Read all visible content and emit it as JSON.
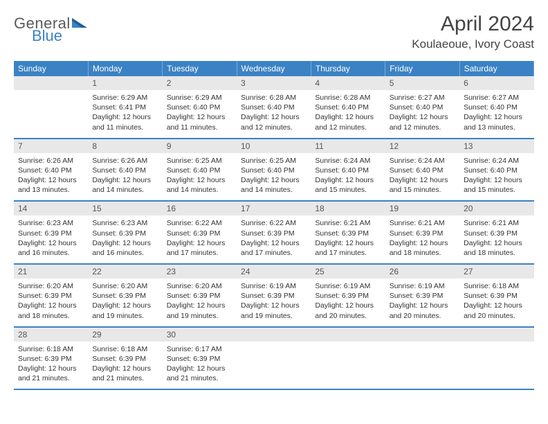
{
  "logo": {
    "part1": "General",
    "part2": "Blue"
  },
  "title": "April 2024",
  "location": "Koulaeoue, Ivory Coast",
  "colors": {
    "header_bg": "#3b82c4",
    "header_text": "#ffffff",
    "daynum_bg": "#e8e8e8",
    "text": "#333333",
    "rule": "#3b82c4"
  },
  "fonts": {
    "title_size_pt": 22,
    "location_size_pt": 13,
    "header_size_pt": 9,
    "body_size_pt": 8
  },
  "weekdays": [
    "Sunday",
    "Monday",
    "Tuesday",
    "Wednesday",
    "Thursday",
    "Friday",
    "Saturday"
  ],
  "weeks": [
    [
      null,
      {
        "n": "1",
        "sr": "Sunrise: 6:29 AM",
        "ss": "Sunset: 6:41 PM",
        "dl": "Daylight: 12 hours and 11 minutes."
      },
      {
        "n": "2",
        "sr": "Sunrise: 6:29 AM",
        "ss": "Sunset: 6:40 PM",
        "dl": "Daylight: 12 hours and 11 minutes."
      },
      {
        "n": "3",
        "sr": "Sunrise: 6:28 AM",
        "ss": "Sunset: 6:40 PM",
        "dl": "Daylight: 12 hours and 12 minutes."
      },
      {
        "n": "4",
        "sr": "Sunrise: 6:28 AM",
        "ss": "Sunset: 6:40 PM",
        "dl": "Daylight: 12 hours and 12 minutes."
      },
      {
        "n": "5",
        "sr": "Sunrise: 6:27 AM",
        "ss": "Sunset: 6:40 PM",
        "dl": "Daylight: 12 hours and 12 minutes."
      },
      {
        "n": "6",
        "sr": "Sunrise: 6:27 AM",
        "ss": "Sunset: 6:40 PM",
        "dl": "Daylight: 12 hours and 13 minutes."
      }
    ],
    [
      {
        "n": "7",
        "sr": "Sunrise: 6:26 AM",
        "ss": "Sunset: 6:40 PM",
        "dl": "Daylight: 12 hours and 13 minutes."
      },
      {
        "n": "8",
        "sr": "Sunrise: 6:26 AM",
        "ss": "Sunset: 6:40 PM",
        "dl": "Daylight: 12 hours and 14 minutes."
      },
      {
        "n": "9",
        "sr": "Sunrise: 6:25 AM",
        "ss": "Sunset: 6:40 PM",
        "dl": "Daylight: 12 hours and 14 minutes."
      },
      {
        "n": "10",
        "sr": "Sunrise: 6:25 AM",
        "ss": "Sunset: 6:40 PM",
        "dl": "Daylight: 12 hours and 14 minutes."
      },
      {
        "n": "11",
        "sr": "Sunrise: 6:24 AM",
        "ss": "Sunset: 6:40 PM",
        "dl": "Daylight: 12 hours and 15 minutes."
      },
      {
        "n": "12",
        "sr": "Sunrise: 6:24 AM",
        "ss": "Sunset: 6:40 PM",
        "dl": "Daylight: 12 hours and 15 minutes."
      },
      {
        "n": "13",
        "sr": "Sunrise: 6:24 AM",
        "ss": "Sunset: 6:40 PM",
        "dl": "Daylight: 12 hours and 15 minutes."
      }
    ],
    [
      {
        "n": "14",
        "sr": "Sunrise: 6:23 AM",
        "ss": "Sunset: 6:39 PM",
        "dl": "Daylight: 12 hours and 16 minutes."
      },
      {
        "n": "15",
        "sr": "Sunrise: 6:23 AM",
        "ss": "Sunset: 6:39 PM",
        "dl": "Daylight: 12 hours and 16 minutes."
      },
      {
        "n": "16",
        "sr": "Sunrise: 6:22 AM",
        "ss": "Sunset: 6:39 PM",
        "dl": "Daylight: 12 hours and 17 minutes."
      },
      {
        "n": "17",
        "sr": "Sunrise: 6:22 AM",
        "ss": "Sunset: 6:39 PM",
        "dl": "Daylight: 12 hours and 17 minutes."
      },
      {
        "n": "18",
        "sr": "Sunrise: 6:21 AM",
        "ss": "Sunset: 6:39 PM",
        "dl": "Daylight: 12 hours and 17 minutes."
      },
      {
        "n": "19",
        "sr": "Sunrise: 6:21 AM",
        "ss": "Sunset: 6:39 PM",
        "dl": "Daylight: 12 hours and 18 minutes."
      },
      {
        "n": "20",
        "sr": "Sunrise: 6:21 AM",
        "ss": "Sunset: 6:39 PM",
        "dl": "Daylight: 12 hours and 18 minutes."
      }
    ],
    [
      {
        "n": "21",
        "sr": "Sunrise: 6:20 AM",
        "ss": "Sunset: 6:39 PM",
        "dl": "Daylight: 12 hours and 18 minutes."
      },
      {
        "n": "22",
        "sr": "Sunrise: 6:20 AM",
        "ss": "Sunset: 6:39 PM",
        "dl": "Daylight: 12 hours and 19 minutes."
      },
      {
        "n": "23",
        "sr": "Sunrise: 6:20 AM",
        "ss": "Sunset: 6:39 PM",
        "dl": "Daylight: 12 hours and 19 minutes."
      },
      {
        "n": "24",
        "sr": "Sunrise: 6:19 AM",
        "ss": "Sunset: 6:39 PM",
        "dl": "Daylight: 12 hours and 19 minutes."
      },
      {
        "n": "25",
        "sr": "Sunrise: 6:19 AM",
        "ss": "Sunset: 6:39 PM",
        "dl": "Daylight: 12 hours and 20 minutes."
      },
      {
        "n": "26",
        "sr": "Sunrise: 6:19 AM",
        "ss": "Sunset: 6:39 PM",
        "dl": "Daylight: 12 hours and 20 minutes."
      },
      {
        "n": "27",
        "sr": "Sunrise: 6:18 AM",
        "ss": "Sunset: 6:39 PM",
        "dl": "Daylight: 12 hours and 20 minutes."
      }
    ],
    [
      {
        "n": "28",
        "sr": "Sunrise: 6:18 AM",
        "ss": "Sunset: 6:39 PM",
        "dl": "Daylight: 12 hours and 21 minutes."
      },
      {
        "n": "29",
        "sr": "Sunrise: 6:18 AM",
        "ss": "Sunset: 6:39 PM",
        "dl": "Daylight: 12 hours and 21 minutes."
      },
      {
        "n": "30",
        "sr": "Sunrise: 6:17 AM",
        "ss": "Sunset: 6:39 PM",
        "dl": "Daylight: 12 hours and 21 minutes."
      },
      null,
      null,
      null,
      null
    ]
  ]
}
